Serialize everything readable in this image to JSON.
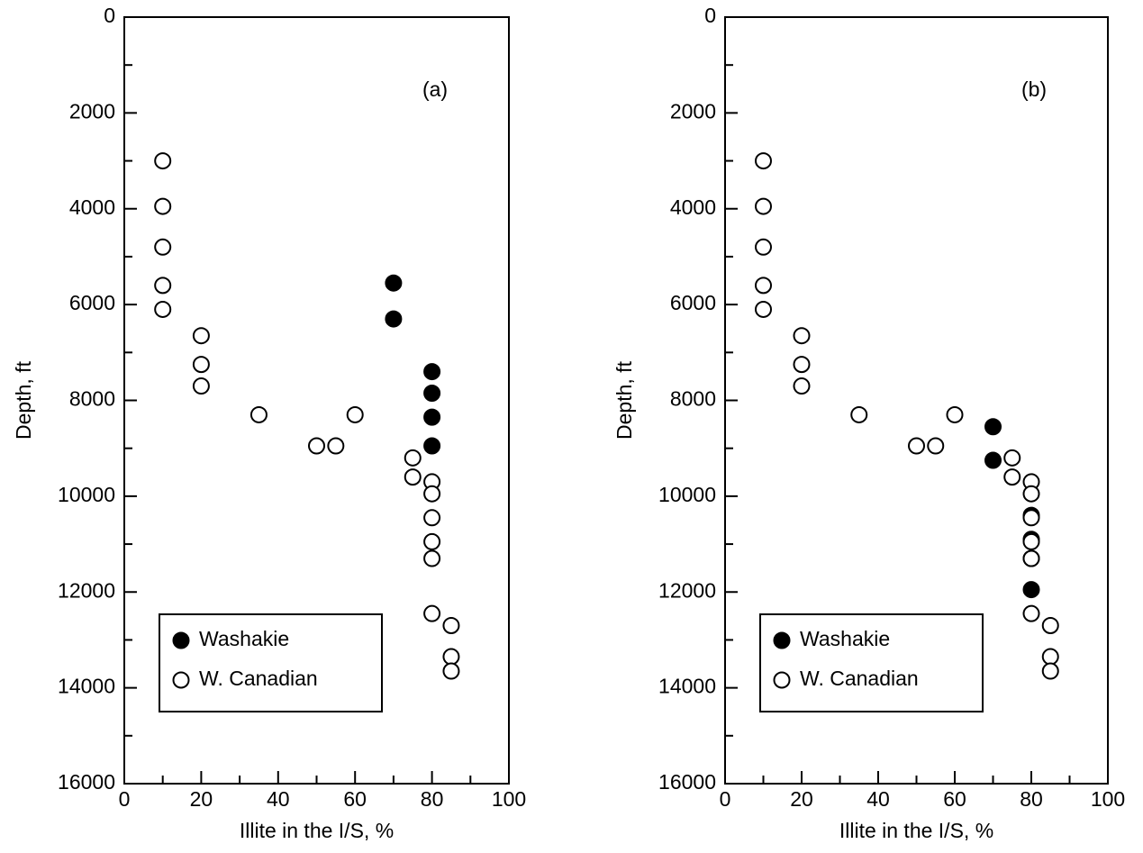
{
  "chart_data": [
    {
      "type": "scatter",
      "annotation": "(a)",
      "xlabel": "Illite in the I/S, %",
      "ylabel": "Depth, ft",
      "xlim": [
        0,
        100
      ],
      "xticks": [
        0,
        20,
        40,
        60,
        80,
        100
      ],
      "minor_xticks": [
        10,
        30,
        50,
        70,
        90
      ],
      "ylim": [
        16000,
        0
      ],
      "yticks": [
        0,
        2000,
        4000,
        6000,
        8000,
        10000,
        12000,
        14000,
        16000
      ],
      "minor_yticks": [
        1000,
        3000,
        5000,
        7000,
        9000,
        11000,
        13000,
        15000
      ],
      "legend": "lower left",
      "series": [
        {
          "name": "Washakie",
          "color": "#000000",
          "filled": true,
          "x": [
            70,
            70,
            80,
            80,
            80,
            80
          ],
          "values": [
            5550,
            6300,
            7400,
            7850,
            8350,
            8950
          ]
        },
        {
          "name": "W. Canadian",
          "color": "#000000",
          "filled": false,
          "x": [
            10,
            10,
            10,
            10,
            10,
            20,
            20,
            20,
            35,
            60,
            50,
            55,
            75,
            75,
            80,
            80,
            80,
            80,
            80,
            80,
            85,
            85,
            85
          ],
          "values": [
            3000,
            3950,
            4800,
            5600,
            6100,
            6650,
            7250,
            7700,
            8300,
            8300,
            8950,
            8950,
            9200,
            9600,
            9700,
            9950,
            10450,
            10950,
            11300,
            12450,
            12700,
            13350,
            13650
          ]
        }
      ]
    },
    {
      "type": "scatter",
      "annotation": "(b)",
      "xlabel": "Illite in the I/S, %",
      "ylabel": "Depth, ft",
      "xlim": [
        0,
        100
      ],
      "xticks": [
        0,
        20,
        40,
        60,
        80,
        100
      ],
      "minor_xticks": [
        10,
        30,
        50,
        70,
        90
      ],
      "ylim": [
        16000,
        0
      ],
      "yticks": [
        0,
        2000,
        4000,
        6000,
        8000,
        10000,
        12000,
        14000,
        16000
      ],
      "minor_yticks": [
        1000,
        3000,
        5000,
        7000,
        9000,
        11000,
        13000,
        15000
      ],
      "legend": "lower left",
      "series": [
        {
          "name": "Washakie",
          "color": "#000000",
          "filled": true,
          "x": [
            70,
            70,
            80,
            80,
            80,
            80
          ],
          "values": [
            8550,
            9250,
            10400,
            10900,
            11300,
            11950
          ]
        },
        {
          "name": "W. Canadian",
          "color": "#000000",
          "filled": false,
          "x": [
            10,
            10,
            10,
            10,
            10,
            20,
            20,
            20,
            35,
            60,
            50,
            55,
            75,
            75,
            80,
            80,
            80,
            80,
            80,
            80,
            85,
            85,
            85
          ],
          "values": [
            3000,
            3950,
            4800,
            5600,
            6100,
            6650,
            7250,
            7700,
            8300,
            8300,
            8950,
            8950,
            9200,
            9600,
            9700,
            9950,
            10450,
            10950,
            11300,
            12450,
            12700,
            13350,
            13650
          ]
        }
      ]
    }
  ]
}
